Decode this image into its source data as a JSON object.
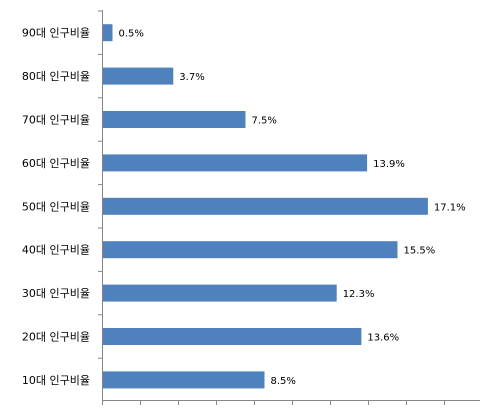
{
  "chart_data": {
    "type": "bar",
    "orientation": "horizontal",
    "categories": [
      "90대 인구비율",
      "80대 인구비율",
      "70대 인구비율",
      "60대 인구비율",
      "50대 인구비율",
      "40대 인구비율",
      "30대 인구비율",
      "20대 인구비율",
      "10대 인구비율"
    ],
    "values": [
      0.5,
      3.7,
      7.5,
      13.9,
      17.1,
      15.5,
      12.3,
      13.6,
      8.5
    ],
    "value_labels": [
      "0.5%",
      "3.7%",
      "7.5%",
      "13.9%",
      "17.1%",
      "15.5%",
      "12.3%",
      "13.6%",
      "8.5%"
    ],
    "title": "",
    "xlabel": "",
    "ylabel": "",
    "xlim": [
      0,
      18
    ],
    "grid": false,
    "legend": "none",
    "bar_color": "#4F81BD"
  }
}
